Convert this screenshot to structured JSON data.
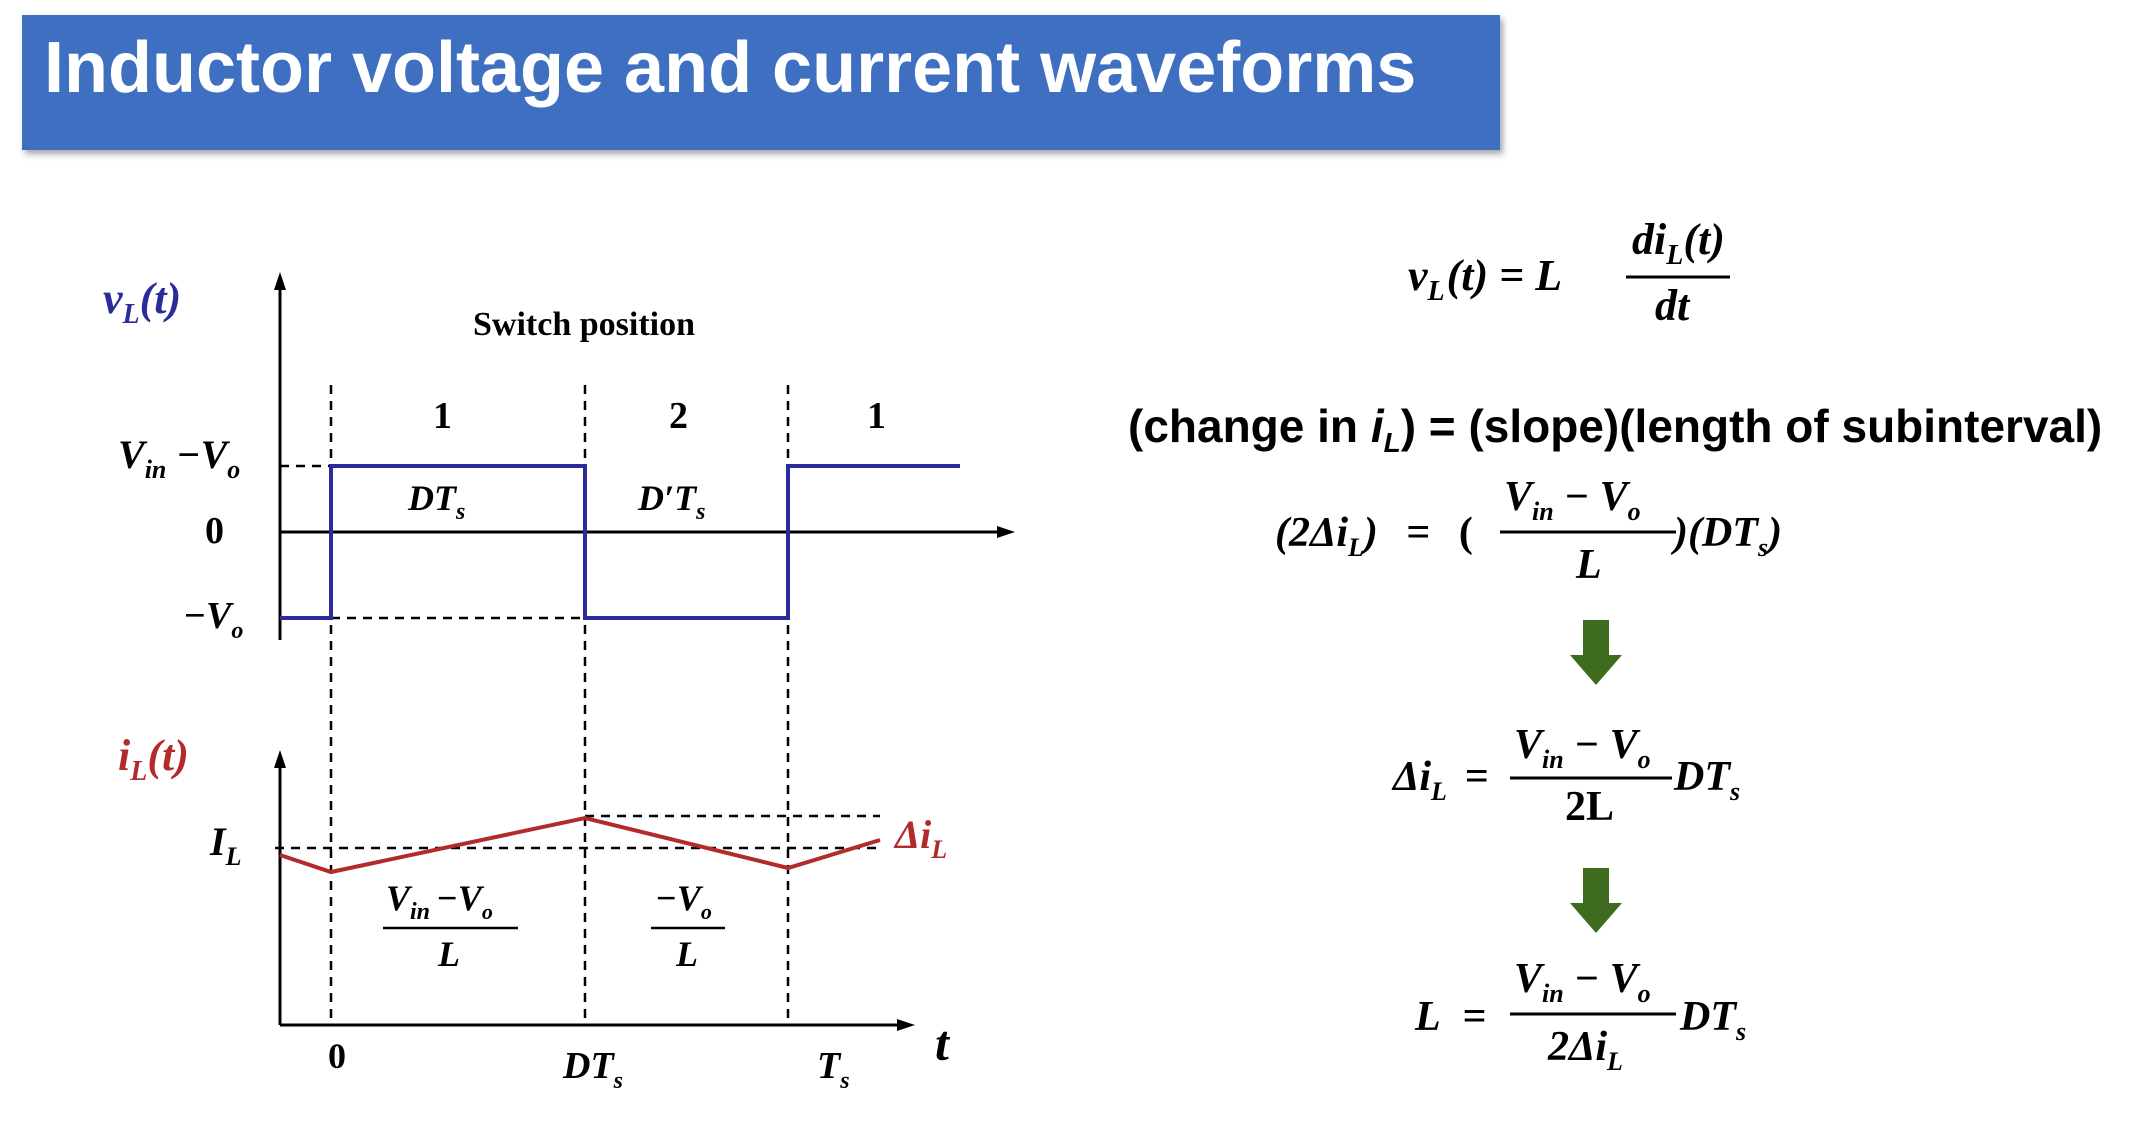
{
  "title": "Inductor voltage and current waveforms",
  "left_diagram": {
    "voltage_axis_label": {
      "base": "v",
      "sub": "L",
      "tail": "(t)"
    },
    "switch_position_label": "Switch position",
    "positions": [
      "1",
      "2",
      "1"
    ],
    "level_high": {
      "a": "V",
      "a_sub": "in",
      "mid": "−V",
      "b_sub": "o"
    },
    "level_zero": "0",
    "level_low": {
      "a": "−V",
      "a_sub": "o"
    },
    "interval_1": {
      "a": "DT",
      "sub": "s"
    },
    "interval_2": {
      "a": "D′T",
      "sub": "s"
    },
    "current_axis_label": {
      "base": "i",
      "sub": "L",
      "tail": "(t)"
    },
    "current_avg": {
      "a": "I",
      "sub": "L"
    },
    "ripple": {
      "a": "Δi",
      "sub": "L"
    },
    "slope_1": {
      "num_a": "V",
      "num_a_sub": "in",
      "num_mid": "−V",
      "num_b_sub": "o",
      "den": "L"
    },
    "slope_2": {
      "num_a": "−V",
      "num_a_sub": "o",
      "den": "L"
    },
    "time_ticks": [
      {
        "a": "0",
        "sub": ""
      },
      {
        "a": "DT",
        "sub": "s"
      },
      {
        "a": "T",
        "sub": "s"
      }
    ],
    "time_axis_label": "t"
  },
  "right_equations": {
    "eq1": {
      "lhs_base": "v",
      "lhs_sub": "L",
      "lhs_tail": "(t) = L",
      "num_base": "di",
      "num_sub": "L",
      "num_tail": "(t)",
      "den": "dt"
    },
    "statement": {
      "part1": "(change in ",
      "i": "i",
      "i_sub": "L",
      "part2": ") = (slope)(length of subinterval)"
    },
    "eq2": {
      "lhs": "(2Δi",
      "lhs_sub": "L",
      "lhs_close": ")",
      "eq": "=",
      "open": "(",
      "num_a": "V",
      "num_a_sub": "in",
      "num_mid": "− V",
      "num_b_sub": "o",
      "den": "L",
      "close": ")(DT",
      "close_sub": "s",
      "close_end": ")"
    },
    "eq3": {
      "lhs": "Δi",
      "lhs_sub": "L",
      "eq": "=",
      "num_a": "V",
      "num_a_sub": "in",
      "num_mid": "− V",
      "num_b_sub": "o",
      "den": "2L",
      "tail": "DT",
      "tail_sub": "s"
    },
    "eq4": {
      "lhs": "L",
      "eq": "=",
      "num_a": "V",
      "num_a_sub": "in",
      "num_mid": "− V",
      "num_b_sub": "o",
      "den": "2Δi",
      "den_sub": "L",
      "tail": "DT",
      "tail_sub": "s"
    }
  },
  "colors": {
    "title_bg": "#3e6fc1",
    "voltage": "#2b2b9b",
    "current": "#b22a2a",
    "arrow": "#3e6b1e"
  }
}
